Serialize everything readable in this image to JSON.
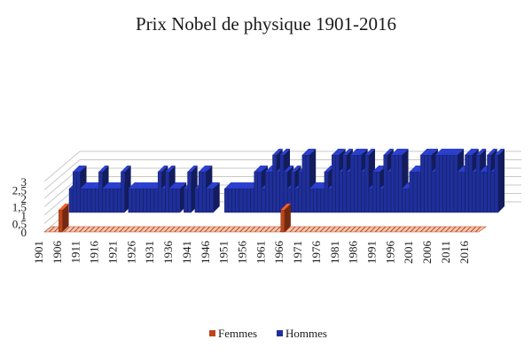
{
  "chart_data": {
    "type": "bar",
    "style": "3d-clustered-depth",
    "title": "Prix Nobel de physique 1901-2016",
    "xlabel": "",
    "ylabel": "",
    "ylim": [
      0,
      3
    ],
    "yticks": [
      "0",
      "0,5",
      "1",
      "1,5",
      "2",
      "2,5",
      "3"
    ],
    "xticks": [
      "1901",
      "1906",
      "1911",
      "1916",
      "1921",
      "1926",
      "1931",
      "1936",
      "1941",
      "1946",
      "1951",
      "1956",
      "1961",
      "1966",
      "1971",
      "1976",
      "1981",
      "1986",
      "1991",
      "1996",
      "2001",
      "2006",
      "2011",
      "2016"
    ],
    "grid": true,
    "legend": "bottom",
    "colors": {
      "Femmes": "#c0441a",
      "Hommes": "#1f2f9a"
    },
    "x_start": 1901,
    "x_end": 2016,
    "series": [
      {
        "name": "Femmes",
        "points": [
          [
            1903,
            1
          ],
          [
            1963,
            1
          ]
        ]
      },
      {
        "name": "Hommes",
        "points": [
          [
            1901,
            1
          ],
          [
            1902,
            2
          ],
          [
            1903,
            2
          ],
          [
            1904,
            1
          ],
          [
            1905,
            1
          ],
          [
            1906,
            1
          ],
          [
            1907,
            1
          ],
          [
            1908,
            1
          ],
          [
            1909,
            2
          ],
          [
            1910,
            1
          ],
          [
            1911,
            1
          ],
          [
            1912,
            1
          ],
          [
            1913,
            1
          ],
          [
            1914,
            1
          ],
          [
            1915,
            2
          ],
          [
            1917,
            1
          ],
          [
            1918,
            1
          ],
          [
            1919,
            1
          ],
          [
            1920,
            1
          ],
          [
            1921,
            1
          ],
          [
            1922,
            1
          ],
          [
            1923,
            1
          ],
          [
            1924,
            1
          ],
          [
            1925,
            2
          ],
          [
            1926,
            1
          ],
          [
            1927,
            2
          ],
          [
            1928,
            1
          ],
          [
            1929,
            1
          ],
          [
            1930,
            1
          ],
          [
            1932,
            1
          ],
          [
            1933,
            2
          ],
          [
            1935,
            1
          ],
          [
            1936,
            2
          ],
          [
            1937,
            2
          ],
          [
            1938,
            1
          ],
          [
            1939,
            1
          ],
          [
            1943,
            1
          ],
          [
            1944,
            1
          ],
          [
            1945,
            1
          ],
          [
            1946,
            1
          ],
          [
            1947,
            1
          ],
          [
            1948,
            1
          ],
          [
            1949,
            1
          ],
          [
            1950,
            1
          ],
          [
            1951,
            2
          ],
          [
            1952,
            2
          ],
          [
            1953,
            1
          ],
          [
            1954,
            2
          ],
          [
            1955,
            2
          ],
          [
            1956,
            3
          ],
          [
            1957,
            2
          ],
          [
            1958,
            3
          ],
          [
            1959,
            2
          ],
          [
            1960,
            1
          ],
          [
            1961,
            2
          ],
          [
            1962,
            1
          ],
          [
            1963,
            2
          ],
          [
            1964,
            3
          ],
          [
            1965,
            3
          ],
          [
            1966,
            1
          ],
          [
            1967,
            1
          ],
          [
            1968,
            1
          ],
          [
            1969,
            1
          ],
          [
            1970,
            2
          ],
          [
            1971,
            1
          ],
          [
            1972,
            3
          ],
          [
            1973,
            3
          ],
          [
            1974,
            2
          ],
          [
            1975,
            3
          ],
          [
            1976,
            2
          ],
          [
            1977,
            3
          ],
          [
            1978,
            3
          ],
          [
            1979,
            3
          ],
          [
            1980,
            2
          ],
          [
            1981,
            3
          ],
          [
            1982,
            1
          ],
          [
            1983,
            2
          ],
          [
            1984,
            2
          ],
          [
            1985,
            1
          ],
          [
            1986,
            3
          ],
          [
            1987,
            2
          ],
          [
            1988,
            3
          ],
          [
            1989,
            3
          ],
          [
            1990,
            3
          ],
          [
            1991,
            1
          ],
          [
            1992,
            1
          ],
          [
            1993,
            2
          ],
          [
            1994,
            2
          ],
          [
            1995,
            2
          ],
          [
            1996,
            3
          ],
          [
            1997,
            3
          ],
          [
            1998,
            3
          ],
          [
            1999,
            2
          ],
          [
            2000,
            3
          ],
          [
            2001,
            3
          ],
          [
            2002,
            3
          ],
          [
            2003,
            3
          ],
          [
            2004,
            3
          ],
          [
            2005,
            3
          ],
          [
            2006,
            2
          ],
          [
            2007,
            2
          ],
          [
            2008,
            3
          ],
          [
            2009,
            3
          ],
          [
            2010,
            2
          ],
          [
            2011,
            3
          ],
          [
            2012,
            2
          ],
          [
            2013,
            2
          ],
          [
            2014,
            3
          ],
          [
            2015,
            2
          ],
          [
            2016,
            3
          ]
        ]
      }
    ]
  }
}
